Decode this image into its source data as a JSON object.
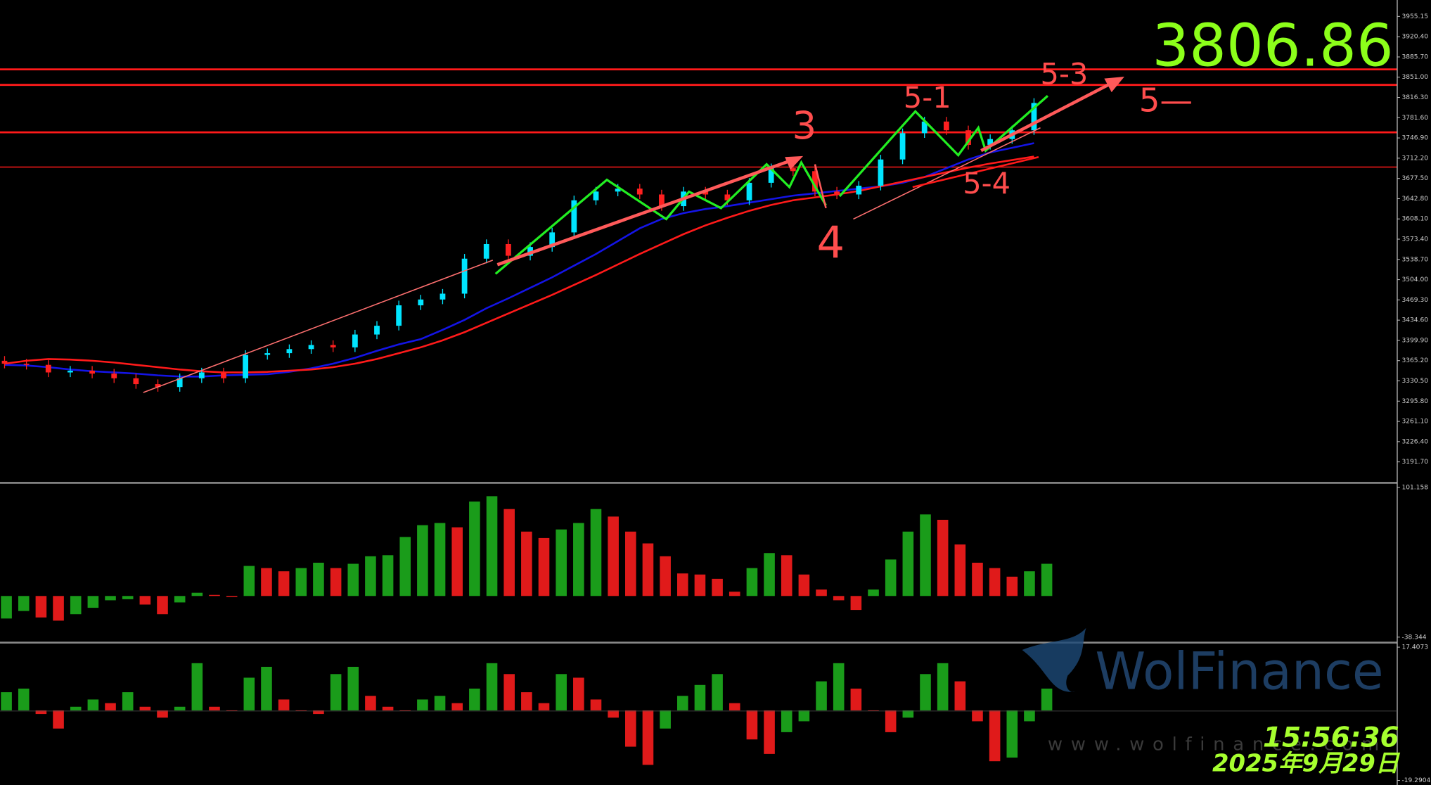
{
  "chart_data": [
    {
      "type": "candlestick",
      "open": [
        3365,
        3360,
        3358,
        3345,
        3348,
        3343,
        3335,
        3325,
        3320,
        3335,
        3345,
        3335,
        3375,
        3378,
        3385,
        3392,
        3388,
        3410,
        3425,
        3460,
        3470,
        3480,
        3540,
        3565,
        3545,
        3560,
        3585,
        3640,
        3655,
        3660,
        3650,
        3630,
        3655,
        3650,
        3640,
        3670,
        3695,
        3690,
        3655,
        3650,
        3665,
        3710,
        3755,
        3775,
        3760,
        3735,
        3745,
        3760
      ],
      "high": [
        3373,
        3368,
        3366,
        3356,
        3356,
        3351,
        3343,
        3333,
        3343,
        3353,
        3353,
        3383,
        3386,
        3393,
        3400,
        3400,
        3418,
        3433,
        3468,
        3478,
        3488,
        3548,
        3573,
        3573,
        3568,
        3593,
        3648,
        3663,
        3668,
        3668,
        3658,
        3663,
        3663,
        3658,
        3678,
        3703,
        3703,
        3698,
        3663,
        3673,
        3718,
        3763,
        3783,
        3783,
        3768,
        3753,
        3768,
        3815
      ],
      "low": [
        3352,
        3350,
        3337,
        3337,
        3335,
        3327,
        3317,
        3312,
        3312,
        3327,
        3327,
        3327,
        3367,
        3370,
        3377,
        3380,
        3380,
        3402,
        3417,
        3452,
        3462,
        3472,
        3532,
        3537,
        3537,
        3552,
        3577,
        3632,
        3647,
        3642,
        3622,
        3622,
        3642,
        3632,
        3632,
        3662,
        3682,
        3647,
        3642,
        3642,
        3657,
        3702,
        3747,
        3752,
        3727,
        3727,
        3737,
        3752
      ],
      "close": [
        3360,
        3358,
        3345,
        3348,
        3343,
        3335,
        3325,
        3320,
        3335,
        3345,
        3335,
        3375,
        3378,
        3385,
        3392,
        3388,
        3410,
        3425,
        3460,
        3470,
        3480,
        3540,
        3565,
        3545,
        3560,
        3585,
        3640,
        3655,
        3660,
        3650,
        3630,
        3655,
        3650,
        3640,
        3670,
        3695,
        3690,
        3655,
        3650,
        3665,
        3710,
        3755,
        3775,
        3760,
        3735,
        3745,
        3760,
        3806.86
      ],
      "up_color": "#00e5ff",
      "down_color": "#ff2020",
      "series": [
        {
          "color": "#1414e6",
          "values": [
            3358,
            3357,
            3354,
            3350,
            3347,
            3345,
            3343,
            3340,
            3338,
            3338,
            3340,
            3341,
            3342,
            3346,
            3352,
            3360,
            3370,
            3382,
            3393,
            3402,
            3418,
            3435,
            3455,
            3472,
            3490,
            3508,
            3528,
            3548,
            3570,
            3592,
            3608,
            3618,
            3625,
            3630,
            3636,
            3642,
            3648,
            3652,
            3656,
            3660,
            3664,
            3670,
            3680,
            3695,
            3710,
            3722,
            3730,
            3738
          ]
        },
        {
          "color": "#ff1a1a",
          "values": [
            3360,
            3365,
            3368,
            3367,
            3365,
            3362,
            3358,
            3354,
            3350,
            3347,
            3345,
            3345,
            3346,
            3348,
            3350,
            3354,
            3360,
            3368,
            3378,
            3388,
            3400,
            3414,
            3430,
            3446,
            3462,
            3478,
            3495,
            3512,
            3530,
            3548,
            3565,
            3582,
            3597,
            3610,
            3622,
            3632,
            3640,
            3645,
            3650,
            3656,
            3664,
            3672,
            3680,
            3688,
            3696,
            3703,
            3709,
            3715
          ]
        }
      ],
      "levels": [
        3864.4,
        3837.8,
        3756.5,
        3697.0
      ],
      "level_color": "#ff1a1a",
      "ylim": [
        3157.3,
        3983.3
      ],
      "yticks": [
        3955.15,
        {
          "value": 3920.4,
          "label": "3920.40"
        },
        {
          "value": 3885.7,
          "label": "3885.70"
        },
        {
          "value": 3851,
          "label": "3851.00"
        },
        {
          "value": 3816.3,
          "label": "3816.30"
        },
        {
          "value": 3781.6,
          "label": "3781.60"
        },
        {
          "value": 3746.9,
          "label": "3746.90"
        },
        {
          "value": 3712.2,
          "label": "3712.20"
        },
        {
          "value": 3677.5,
          "label": "3677.50"
        },
        {
          "value": 3642.8,
          "label": "3642.80"
        },
        {
          "value": 3608.1,
          "label": "3608.10"
        },
        {
          "value": 3573.4,
          "label": "3573.40"
        },
        {
          "value": 3538.7,
          "label": "3538.70"
        },
        {
          "value": 3504,
          "label": "3504.00"
        },
        {
          "value": 3469.3,
          "label": "3469.30"
        },
        {
          "value": 3434.6,
          "label": "3434.60"
        },
        {
          "value": 3399.9,
          "label": "3399.90"
        },
        {
          "value": 3365.2,
          "label": "3365.20"
        },
        {
          "value": 3330.5,
          "label": "3330.50"
        },
        {
          "value": 3295.8,
          "label": "3295.80"
        },
        {
          "value": 3261.1,
          "label": "3261.10"
        },
        {
          "value": 3226.4,
          "label": "3226.40"
        },
        {
          "value": 3191.7,
          "label": "3191.70"
        }
      ],
      "annotations": [
        "3",
        "4",
        "5-1",
        "5-4",
        "5-3",
        "5—"
      ]
    },
    {
      "type": "bar",
      "up_color": "#1a9c1a",
      "down_color": "#e01a1a",
      "values": [
        -21,
        -14,
        -20,
        -23,
        -17,
        -11,
        -4,
        -3,
        -8,
        -17,
        -6,
        3,
        1,
        -1,
        28,
        26,
        23,
        26,
        31,
        26,
        30,
        37,
        38,
        55,
        66,
        68,
        64,
        88,
        93,
        81,
        60,
        54,
        62,
        68,
        81,
        74,
        60,
        49,
        37,
        21,
        20,
        16,
        4,
        26,
        40,
        38,
        20,
        6,
        -4,
        -13,
        6,
        34,
        60,
        76,
        71,
        48,
        31,
        26,
        18,
        23,
        30
      ],
      "ylim": [
        -38.344,
        101.158
      ],
      "yticks": [
        101.158,
        -38.344
      ]
    },
    {
      "type": "bar",
      "up_color": "#1a9c1a",
      "down_color": "#e01a1a",
      "values": [
        5,
        6,
        -1,
        -5,
        1,
        3,
        2,
        5,
        1,
        -2,
        1,
        13,
        1,
        0,
        9,
        12,
        3,
        0,
        -1,
        10,
        12,
        4,
        1,
        0,
        3,
        4,
        2,
        6,
        13,
        10,
        5,
        2,
        10,
        9,
        3,
        -2,
        -10,
        -15,
        -5,
        4,
        7,
        10,
        2,
        -8,
        -12,
        -6,
        -3,
        8,
        13,
        6,
        0,
        -6,
        -2,
        10,
        13,
        8,
        -3,
        -14,
        -13,
        -3,
        6
      ],
      "ylim": [
        -19.2904,
        17.4073
      ],
      "yticks": [
        17.4073,
        -19.2904
      ]
    }
  ],
  "price": "3806.86",
  "time": "15:56:36",
  "date": "2025年9月29日",
  "watermark": {
    "brand": "WolFinance",
    "site": "www.wolfinance.com"
  }
}
